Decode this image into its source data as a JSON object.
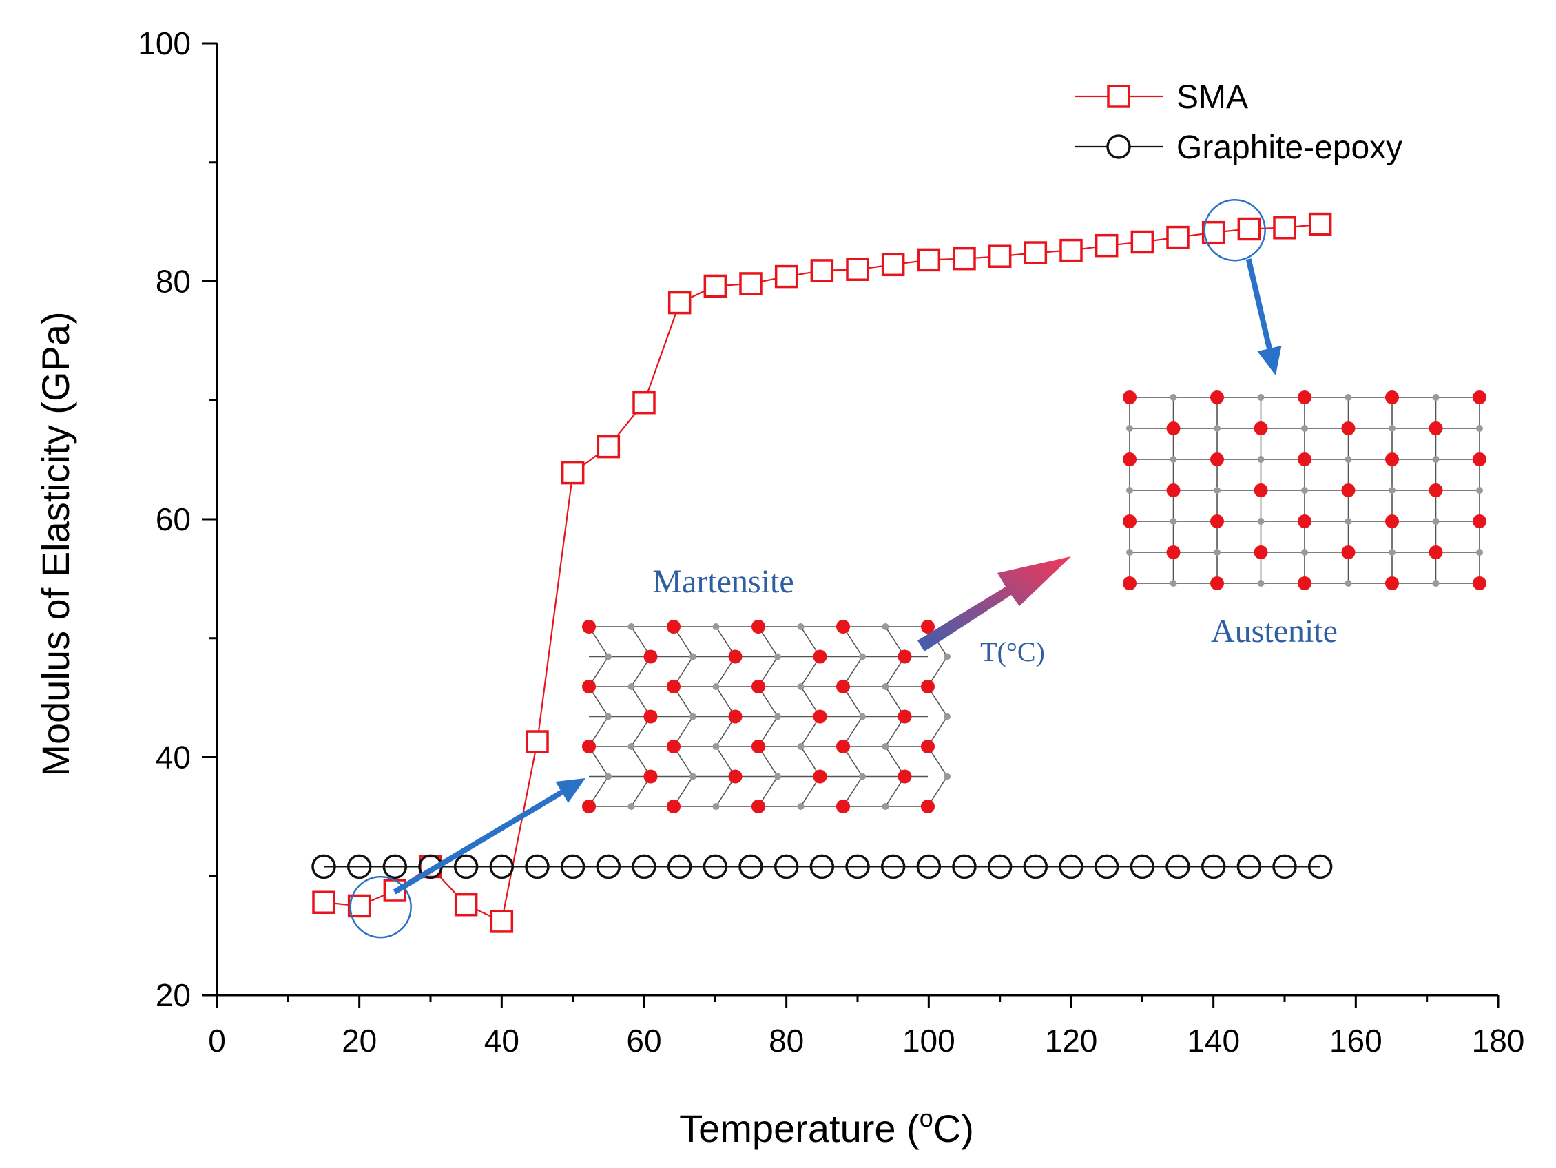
{
  "chart_data": {
    "type": "scatter",
    "title": "",
    "xlabel": "Temperature (",
    "xlabel_degree": "o",
    "xlabel_unit": "C)",
    "ylabel": "Modulus of Elasticity (GPa)",
    "xlim": [
      0,
      180
    ],
    "ylim": [
      20,
      100
    ],
    "xticks": [
      0,
      20,
      40,
      60,
      80,
      100,
      120,
      140,
      160,
      180
    ],
    "yticks": [
      20,
      40,
      60,
      80,
      100
    ],
    "grid": false,
    "legend_position": "top-right",
    "series": [
      {
        "name": "SMA",
        "marker": "square",
        "color": "#e8141b",
        "x": [
          15,
          20,
          25,
          30,
          35,
          40,
          45,
          50,
          55,
          60,
          65,
          70,
          75,
          80,
          85,
          90,
          95,
          100,
          105,
          110,
          115,
          120,
          125,
          130,
          135,
          140,
          145,
          150,
          155
        ],
        "y": [
          27.8,
          27.5,
          28.8,
          30.8,
          27.6,
          26.2,
          41.3,
          63.9,
          66.1,
          69.8,
          78.2,
          79.6,
          79.8,
          80.4,
          80.9,
          81.0,
          81.4,
          81.8,
          81.9,
          82.1,
          82.4,
          82.6,
          83.0,
          83.3,
          83.7,
          84.1,
          84.4,
          84.5,
          84.8
        ]
      },
      {
        "name": "Graphite-epoxy",
        "marker": "circle",
        "color": "#111111",
        "x": [
          15,
          20,
          25,
          30,
          35,
          40,
          45,
          50,
          55,
          60,
          65,
          70,
          75,
          80,
          85,
          90,
          95,
          100,
          105,
          110,
          115,
          120,
          125,
          130,
          135,
          140,
          145,
          150,
          155
        ],
        "y": [
          30.8,
          30.8,
          30.8,
          30.8,
          30.8,
          30.8,
          30.8,
          30.8,
          30.8,
          30.8,
          30.8,
          30.8,
          30.8,
          30.8,
          30.8,
          30.8,
          30.8,
          30.8,
          30.8,
          30.8,
          30.8,
          30.8,
          30.8,
          30.8,
          30.8,
          30.8,
          30.8,
          30.8,
          30.8
        ]
      }
    ],
    "annotations": {
      "martensite_label": "Martensite",
      "austenite_label": "Austenite",
      "temperature_arrow_label": "T(°C)",
      "highlight_low": {
        "x": 23,
        "y": 27.4
      },
      "highlight_high": {
        "x": 143,
        "y": 84.3
      }
    }
  },
  "colors": {
    "axis": "#000000",
    "sma": "#e8141b",
    "graphite": "#111111",
    "highlight": "#2a72c8",
    "arrow": "#2a72c8",
    "label_blue": "#2e5fa3",
    "atom": "#e8141b",
    "lattice": "#555555",
    "lattice_node": "#999999",
    "gradient_start": "#3b5fb0",
    "gradient_end": "#f0385a"
  }
}
